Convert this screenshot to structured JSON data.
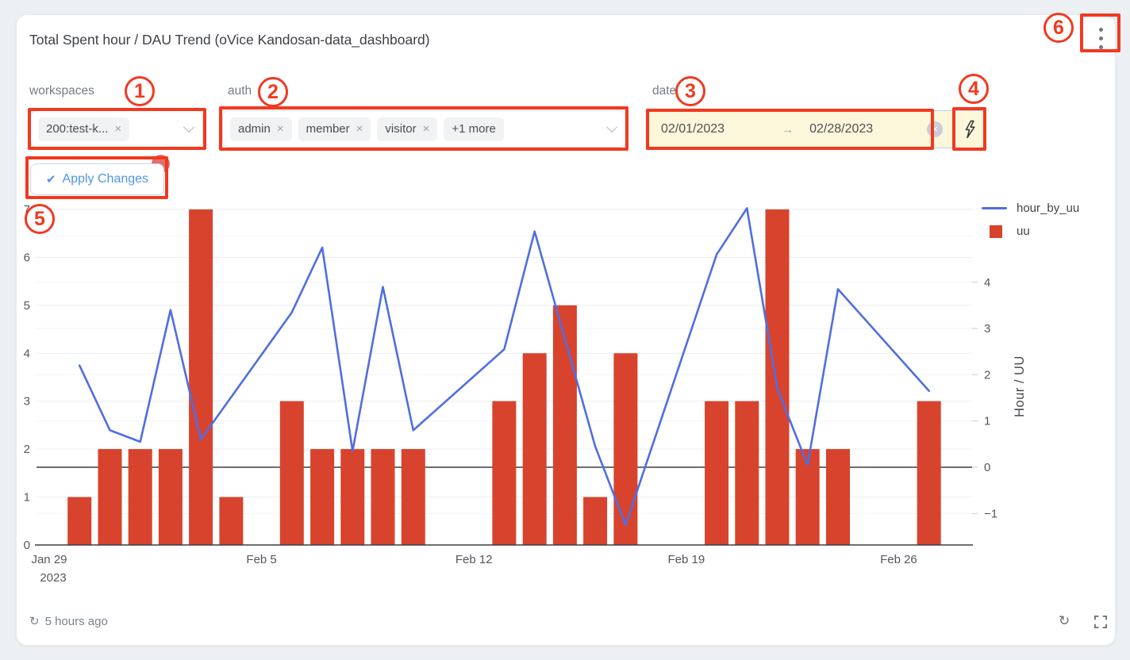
{
  "card": {
    "title": "Total Spent hour / DAU Trend (oVice Kandosan-data_dashboard)",
    "refresh_status": "5 hours ago"
  },
  "icons": {
    "remove": "×",
    "check": "✔",
    "arrow": "→",
    "refresh": "↻"
  },
  "filters": {
    "workspaces": {
      "label": "workspaces",
      "chips": [
        {
          "text": "200:test-k..."
        }
      ]
    },
    "auth": {
      "label": "auth",
      "chips": [
        {
          "text": "admin"
        },
        {
          "text": "member"
        },
        {
          "text": "visitor"
        }
      ],
      "overflow": "+1 more"
    },
    "date": {
      "label": "date",
      "start": "02/01/2023",
      "end": "02/28/2023"
    },
    "apply": {
      "label": "Apply Changes"
    }
  },
  "annotations": {
    "color": "#f2391f",
    "numbers": [
      "1",
      "2",
      "3",
      "4",
      "5",
      "6"
    ]
  },
  "legend": [
    {
      "name": "hour_by_uu",
      "type": "line",
      "color": "#4f6ee3"
    },
    {
      "name": "uu",
      "type": "bar",
      "color": "#d8432e"
    }
  ],
  "chart_data": {
    "type": "combo (bar + line, dual axis)",
    "title": "Total Spent hour / DAU Trend",
    "dates": [
      "Jan 29",
      "Jan 30",
      "Jan 31",
      "Feb 1",
      "Feb 2",
      "Feb 3",
      "Feb 4",
      "Feb 5",
      "Feb 6",
      "Feb 7",
      "Feb 8",
      "Feb 9",
      "Feb 10",
      "Feb 11",
      "Feb 12",
      "Feb 13",
      "Feb 14",
      "Feb 15",
      "Feb 16",
      "Feb 17",
      "Feb 18",
      "Feb 19",
      "Feb 20",
      "Feb 21",
      "Feb 22",
      "Feb 23",
      "Feb 24",
      "Feb 25",
      "Feb 26",
      "Feb 27",
      "Feb 28"
    ],
    "x_ticks": [
      {
        "label": "Jan 29",
        "sublabel": "2023",
        "date": "Jan 29"
      },
      {
        "label": "Feb 5",
        "date": "Feb 5"
      },
      {
        "label": "Feb 12",
        "date": "Feb 12"
      },
      {
        "label": "Feb 19",
        "date": "Feb 19"
      },
      {
        "label": "Feb 26",
        "date": "Feb 26"
      }
    ],
    "left_axis": {
      "ticks": [
        0,
        1,
        2,
        3,
        4,
        5,
        6,
        7
      ],
      "range": [
        0,
        7
      ],
      "grid": true
    },
    "right_axis": {
      "title": "Hour / UU",
      "ticks": [
        -1,
        0,
        1,
        2,
        3,
        4
      ],
      "range": [
        -1.68,
        5.57
      ],
      "zero_line": true
    },
    "legend_position": "top-right",
    "series": [
      {
        "name": "uu",
        "type": "bar",
        "axis": "left",
        "color": "#d8432e",
        "values": [
          0,
          1,
          2,
          2,
          2,
          7,
          1,
          0,
          3,
          2,
          2,
          2,
          2,
          0,
          0,
          3,
          4,
          5,
          1,
          4,
          0,
          0,
          3,
          3,
          7,
          2,
          2,
          0,
          0,
          3,
          0
        ]
      },
      {
        "name": "hour_by_uu",
        "type": "line",
        "axis": "right",
        "color": "#4f6ee3",
        "points": [
          [
            "Jan 30",
            2.2
          ],
          [
            "Jan 31",
            0.8
          ],
          [
            "Feb 1",
            0.55
          ],
          [
            "Feb 2",
            3.4
          ],
          [
            "Feb 3",
            0.6
          ],
          [
            "Feb 6",
            3.35
          ],
          [
            "Feb 7",
            4.75
          ],
          [
            "Feb 8",
            0.35
          ],
          [
            "Feb 9",
            3.9
          ],
          [
            "Feb 10",
            0.8
          ],
          [
            "Feb 13",
            2.55
          ],
          [
            "Feb 14",
            5.1
          ],
          [
            "Feb 16",
            0.45
          ],
          [
            "Feb 17",
            -1.25
          ],
          [
            "Feb 20",
            4.6
          ],
          [
            "Feb 21",
            5.6
          ],
          [
            "Feb 22",
            1.7
          ],
          [
            "Feb 23",
            0.05
          ],
          [
            "Feb 24",
            3.85
          ],
          [
            "Feb 27",
            1.65
          ]
        ]
      }
    ]
  }
}
